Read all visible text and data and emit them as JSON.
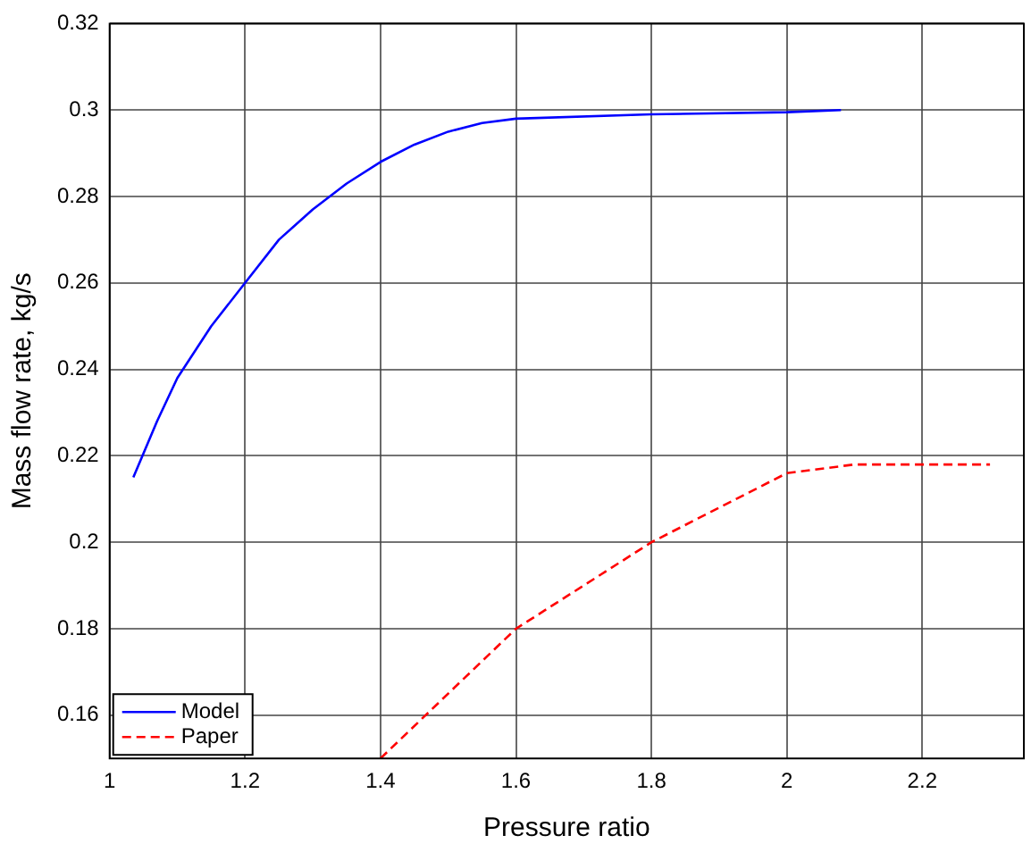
{
  "chart_data": {
    "type": "line",
    "xlabel": "Pressure ratio",
    "ylabel": "Mass flow rate, kg/s",
    "xlim": [
      1,
      2.35
    ],
    "xticks": [
      1,
      1.2,
      1.4,
      1.6,
      1.8,
      2,
      2.2
    ],
    "ylim": [
      0.15,
      0.32
    ],
    "yticks": [
      0.16,
      0.18,
      0.2,
      0.22,
      0.24,
      0.26,
      0.28,
      0.3,
      0.32
    ],
    "grid": true,
    "legend": "bottom left",
    "marker": "none",
    "series": [
      {
        "name": "Model",
        "color": "#0000ff",
        "line_style": "solid",
        "x": [
          1.035,
          1.07,
          1.1,
          1.15,
          1.2,
          1.25,
          1.3,
          1.35,
          1.4,
          1.45,
          1.5,
          1.55,
          1.6,
          1.8,
          2.0,
          2.08
        ],
        "values": [
          0.215,
          0.228,
          0.238,
          0.25,
          0.26,
          0.27,
          0.277,
          0.283,
          0.288,
          0.292,
          0.295,
          0.297,
          0.298,
          0.299,
          0.2995,
          0.3
        ]
      },
      {
        "name": "Paper",
        "color": "#ff0000",
        "line_style": "dashed",
        "x": [
          1.4,
          1.6,
          1.8,
          2.0,
          2.1,
          2.3
        ],
        "values": [
          0.15,
          0.18,
          0.2,
          0.216,
          0.218,
          0.218
        ]
      }
    ]
  }
}
